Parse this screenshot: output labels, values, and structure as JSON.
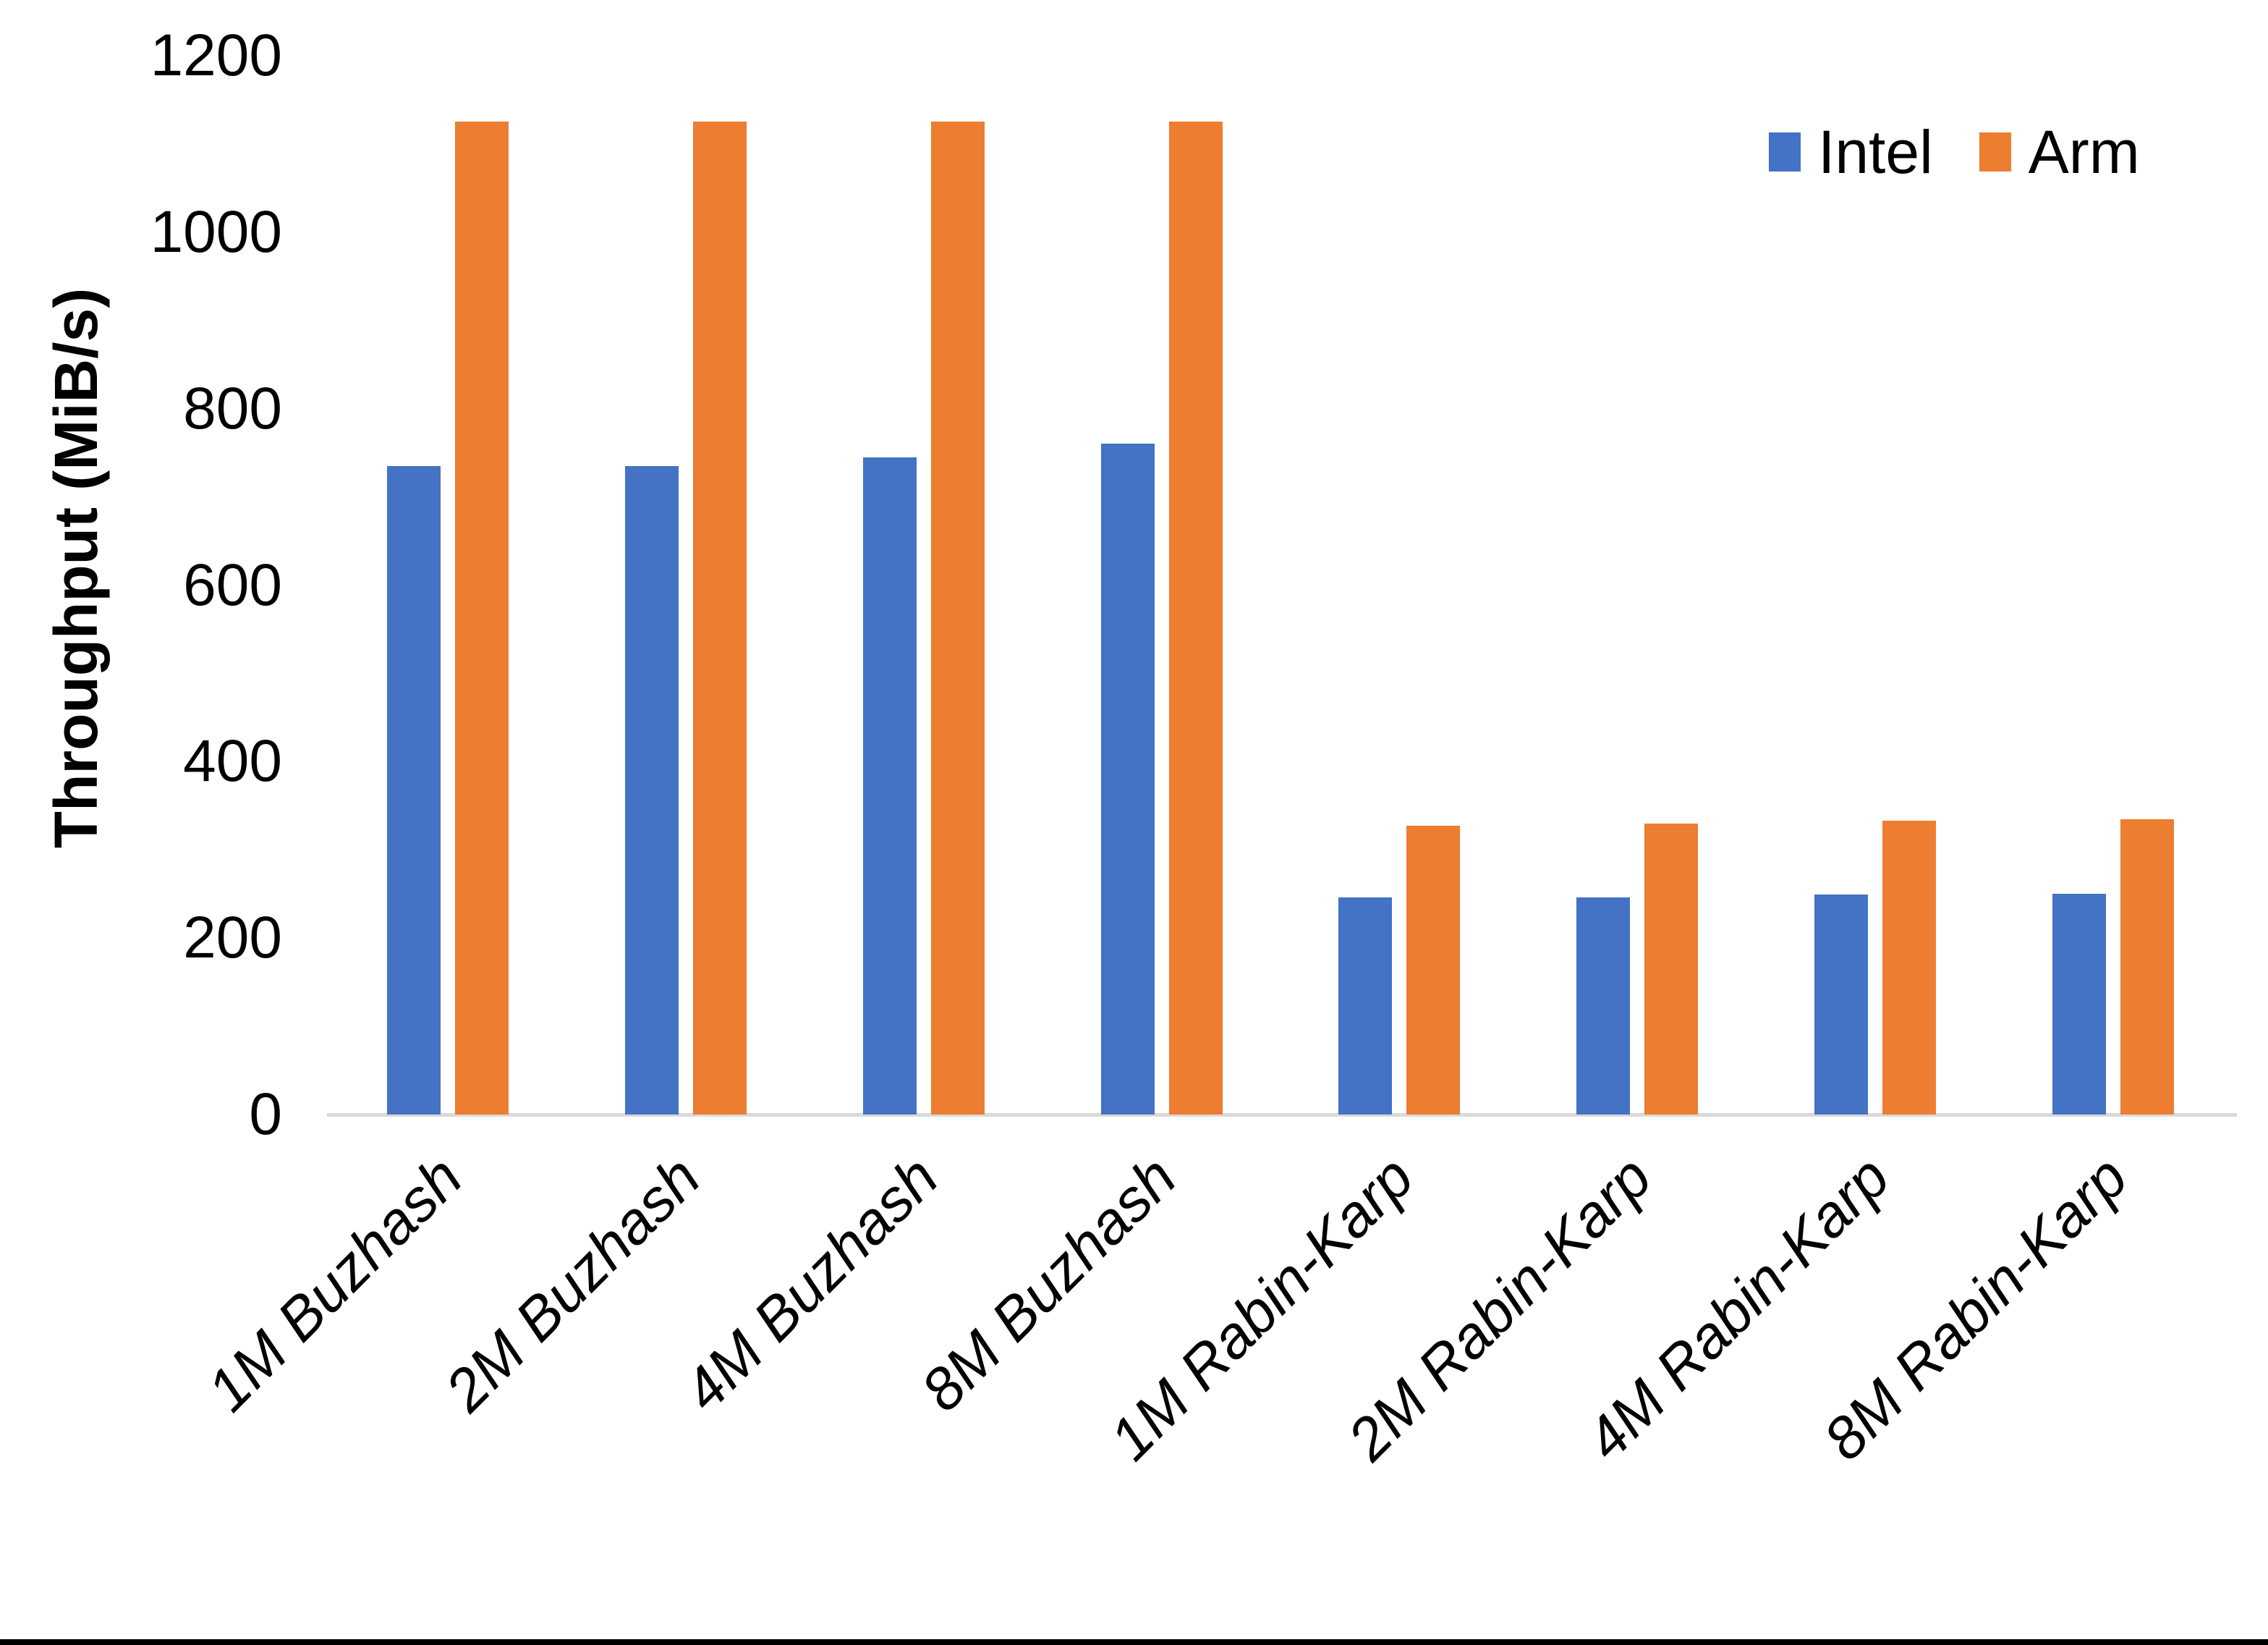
{
  "figure": {
    "background_color": "#ffffff",
    "bottom_border_color": "#000000",
    "axis_line_color": "#d9d9d9",
    "text_color": "#000000"
  },
  "legend": {
    "items": [
      {
        "label": "Intel",
        "color": "#4472c4"
      },
      {
        "label": "Arm",
        "color": "#ed7d31"
      }
    ]
  },
  "chart_data": {
    "type": "bar",
    "title": "",
    "xlabel": "",
    "ylabel": "Throughput (MiB/s)",
    "ylim": [
      0,
      1200
    ],
    "yticks": [
      0,
      200,
      400,
      600,
      800,
      1000,
      1200
    ],
    "grid": false,
    "legend_position": "top-right",
    "categories": [
      "1M Buzhash",
      "2M Buzhash",
      "4M Buzhash",
      "8M Buzhash",
      "1M Rabin-Karp",
      "2M Rabin-Karp",
      "4M Rabin-Karp",
      "8M Rabin-Karp"
    ],
    "series": [
      {
        "name": "Intel",
        "color": "#4472c4",
        "values": [
          735,
          735,
          745,
          760,
          246,
          246,
          249,
          250
        ]
      },
      {
        "name": "Arm",
        "color": "#ed7d31",
        "values": [
          1125,
          1125,
          1125,
          1125,
          327,
          330,
          333,
          335
        ]
      }
    ]
  }
}
